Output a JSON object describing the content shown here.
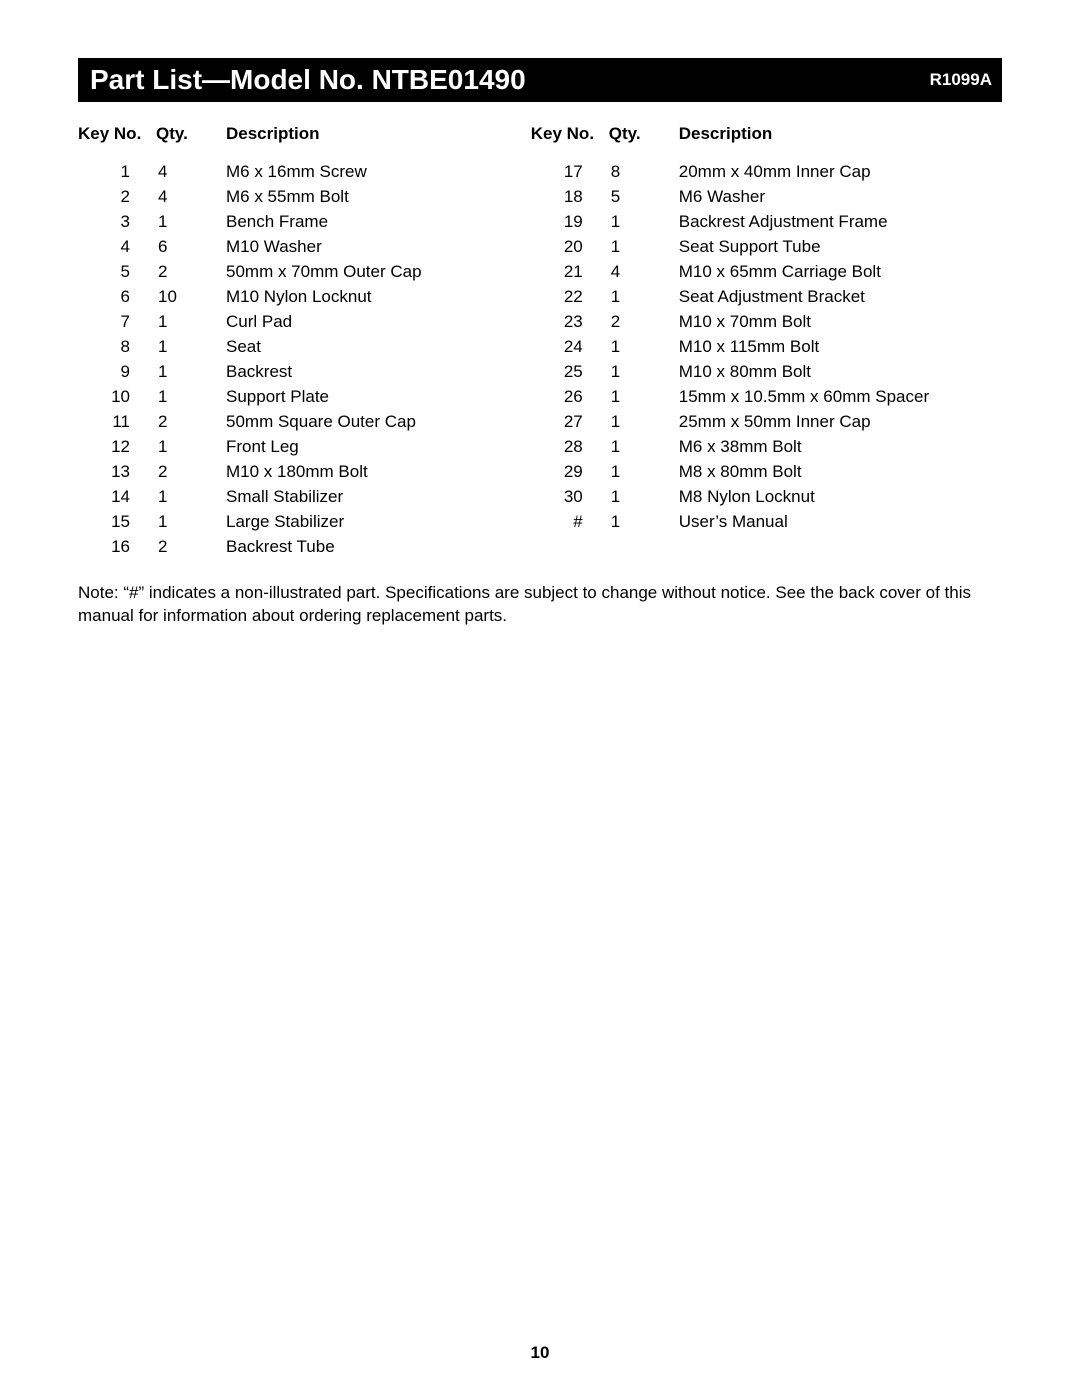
{
  "header": {
    "title": "Part List—Model No. NTBE01490",
    "code": "R1099A"
  },
  "table": {
    "headers": {
      "key": "Key No.",
      "qty": "Qty.",
      "desc": "Description"
    },
    "left": [
      {
        "key": "1",
        "qty": "4",
        "desc": "M6 x 16mm Screw"
      },
      {
        "key": "2",
        "qty": "4",
        "desc": "M6 x 55mm Bolt"
      },
      {
        "key": "3",
        "qty": "1",
        "desc": "Bench Frame"
      },
      {
        "key": "4",
        "qty": "6",
        "desc": "M10 Washer"
      },
      {
        "key": "5",
        "qty": "2",
        "desc": "50mm x 70mm Outer Cap"
      },
      {
        "key": "6",
        "qty": "10",
        "desc": "M10 Nylon Locknut"
      },
      {
        "key": "7",
        "qty": "1",
        "desc": "Curl Pad"
      },
      {
        "key": "8",
        "qty": "1",
        "desc": "Seat"
      },
      {
        "key": "9",
        "qty": "1",
        "desc": "Backrest"
      },
      {
        "key": "10",
        "qty": "1",
        "desc": "Support Plate"
      },
      {
        "key": "11",
        "qty": "2",
        "desc": "50mm Square Outer Cap"
      },
      {
        "key": "12",
        "qty": "1",
        "desc": "Front Leg"
      },
      {
        "key": "13",
        "qty": "2",
        "desc": "M10 x 180mm Bolt"
      },
      {
        "key": "14",
        "qty": "1",
        "desc": "Small Stabilizer"
      },
      {
        "key": "15",
        "qty": "1",
        "desc": "Large Stabilizer"
      },
      {
        "key": "16",
        "qty": "2",
        "desc": "Backrest Tube"
      }
    ],
    "right": [
      {
        "key": "17",
        "qty": "8",
        "desc": "20mm x 40mm Inner Cap"
      },
      {
        "key": "18",
        "qty": "5",
        "desc": "M6 Washer"
      },
      {
        "key": "19",
        "qty": "1",
        "desc": "Backrest Adjustment Frame"
      },
      {
        "key": "20",
        "qty": "1",
        "desc": "Seat Support Tube"
      },
      {
        "key": "21",
        "qty": "4",
        "desc": "M10 x 65mm Carriage Bolt"
      },
      {
        "key": "22",
        "qty": "1",
        "desc": "Seat Adjustment Bracket"
      },
      {
        "key": "23",
        "qty": "2",
        "desc": "M10 x 70mm Bolt"
      },
      {
        "key": "24",
        "qty": "1",
        "desc": "M10 x 115mm Bolt"
      },
      {
        "key": "25",
        "qty": "1",
        "desc": "M10 x 80mm Bolt"
      },
      {
        "key": "26",
        "qty": "1",
        "desc": "15mm x 10.5mm x 60mm Spacer"
      },
      {
        "key": "27",
        "qty": "1",
        "desc": "25mm x 50mm Inner Cap"
      },
      {
        "key": "28",
        "qty": "1",
        "desc": "M6 x 38mm Bolt"
      },
      {
        "key": "29",
        "qty": "1",
        "desc": "M8 x 80mm Bolt"
      },
      {
        "key": "30",
        "qty": "1",
        "desc": "M8 Nylon Locknut"
      },
      {
        "key": "#",
        "qty": "1",
        "desc": "User’s Manual"
      }
    ]
  },
  "note": "Note: “#” indicates a non-illustrated part. Specifications are subject to change without notice. See the back cover of this manual for information about ordering replacement parts.",
  "page_number": "10",
  "style": {
    "bg": "#ffffff",
    "header_bg": "#000000",
    "header_fg": "#ffffff",
    "body_font_size_pt": 12,
    "title_font_size_pt": 21,
    "font_family": "Arial"
  }
}
